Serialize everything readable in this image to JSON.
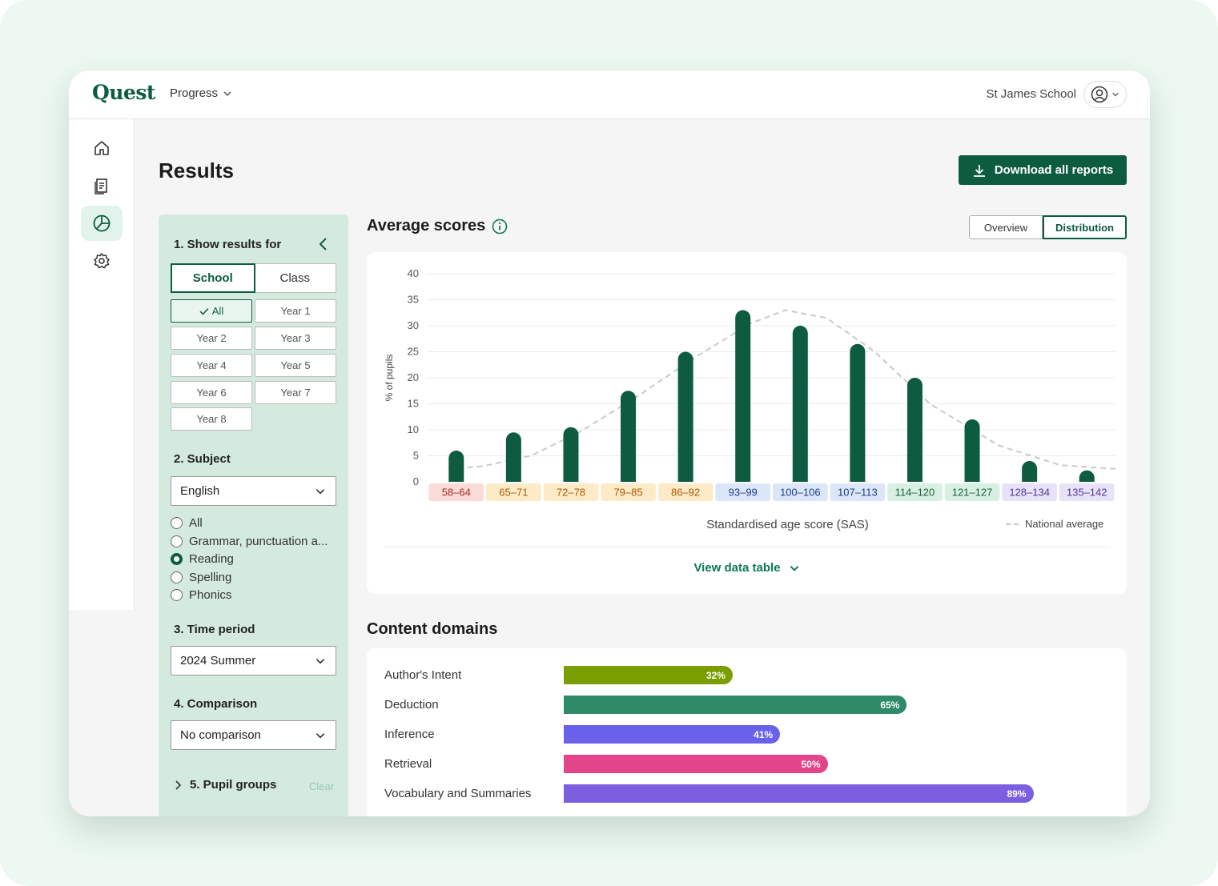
{
  "app": {
    "logo": "Quest",
    "nav_menu": "Progress",
    "school": "St James School"
  },
  "page": {
    "title": "Results",
    "download_label": "Download all reports"
  },
  "filters": {
    "show_results_for": "1. Show results for",
    "scope_tabs": [
      "School",
      "Class"
    ],
    "scope_selected": "School",
    "years": [
      "All",
      "Year 1",
      "Year 2",
      "Year 3",
      "Year 4",
      "Year 5",
      "Year 6",
      "Year 7",
      "Year 8"
    ],
    "years_selected": "All",
    "subject_heading": "2. Subject",
    "subject_value": "English",
    "subject_options": [
      "All",
      "Grammar, punctuation a...",
      "Reading",
      "Spelling",
      "Phonics"
    ],
    "subject_option_selected": "Reading",
    "time_heading": "3. Time period",
    "time_value": "2024 Summer",
    "comparison_heading": "4. Comparison",
    "comparison_value": "No comparison",
    "pupil_groups_heading": "5. Pupil groups",
    "clear_label": "Clear"
  },
  "average_scores": {
    "title": "Average scores",
    "view_tabs": [
      "Overview",
      "Distribution"
    ],
    "view_selected": "Distribution",
    "view_table_label": "View data table",
    "legend_label": "National average"
  },
  "chart_data": {
    "type": "bar",
    "ylabel": "% of pupils",
    "xlabel": "Standardised age score (SAS)",
    "ylim": [
      0,
      40
    ],
    "yticks": [
      0,
      5,
      10,
      15,
      20,
      25,
      30,
      35,
      40
    ],
    "categories": [
      "58–64",
      "65–71",
      "72–78",
      "79–85",
      "86–92",
      "93–99",
      "100–106",
      "107–113",
      "114–120",
      "121–127",
      "128–134",
      "135–142"
    ],
    "values": [
      6,
      9.5,
      10.5,
      17.5,
      25,
      33,
      30,
      26.5,
      20,
      12,
      4,
      2.2
    ],
    "national_average": [
      2.5,
      3,
      5,
      9.5,
      16,
      24,
      30.5,
      33,
      31.5,
      25,
      15,
      7,
      3.2,
      2.5
    ],
    "national_average_x": [
      0.03,
      0.08,
      0.15,
      0.22,
      0.3,
      0.39,
      0.47,
      0.52,
      0.58,
      0.65,
      0.73,
      0.83,
      0.92,
      1.0
    ],
    "band_colors": [
      {
        "bg": "#fadbd8",
        "fg": "#a52a2a"
      },
      {
        "bg": "#fdebc8",
        "fg": "#a85a00"
      },
      {
        "bg": "#fdebc8",
        "fg": "#a85a00"
      },
      {
        "bg": "#fdebc8",
        "fg": "#a85a00"
      },
      {
        "bg": "#fdebc8",
        "fg": "#a85a00"
      },
      {
        "bg": "#dbe6f8",
        "fg": "#1f3f8a"
      },
      {
        "bg": "#dbe6f8",
        "fg": "#1f3f8a"
      },
      {
        "bg": "#dbe6f8",
        "fg": "#1f3f8a"
      },
      {
        "bg": "#d8f0e2",
        "fg": "#1a5e3c"
      },
      {
        "bg": "#d8f0e2",
        "fg": "#1a5e3c"
      },
      {
        "bg": "#e7e2f8",
        "fg": "#4b3a94"
      },
      {
        "bg": "#e7e2f8",
        "fg": "#4b3a94"
      }
    ],
    "bar_color": "#0d5c40",
    "grid": true
  },
  "content_domains": {
    "title": "Content domains",
    "items": [
      {
        "label": "Author's Intent",
        "value": 32,
        "text": "32%",
        "color": "#7a9e00"
      },
      {
        "label": "Deduction",
        "value": 65,
        "text": "65%",
        "color": "#2e8a68"
      },
      {
        "label": "Inference",
        "value": 41,
        "text": "41%",
        "color": "#6961ea"
      },
      {
        "label": "Retrieval",
        "value": 50,
        "text": "50%",
        "color": "#e3458a"
      },
      {
        "label": "Vocabulary and Summaries",
        "value": 89,
        "text": "89%",
        "color": "#7c5ee0"
      }
    ]
  },
  "colors": {
    "brand": "#0d5c40",
    "accent_light": "#d4eadf"
  },
  "icons": [
    "home-icon",
    "document-icon",
    "chart-pie-icon",
    "settings-icon",
    "user-icon",
    "download-icon",
    "info-icon",
    "chevron-down-icon",
    "chevron-left-icon",
    "chevron-right-icon",
    "check-icon"
  ]
}
